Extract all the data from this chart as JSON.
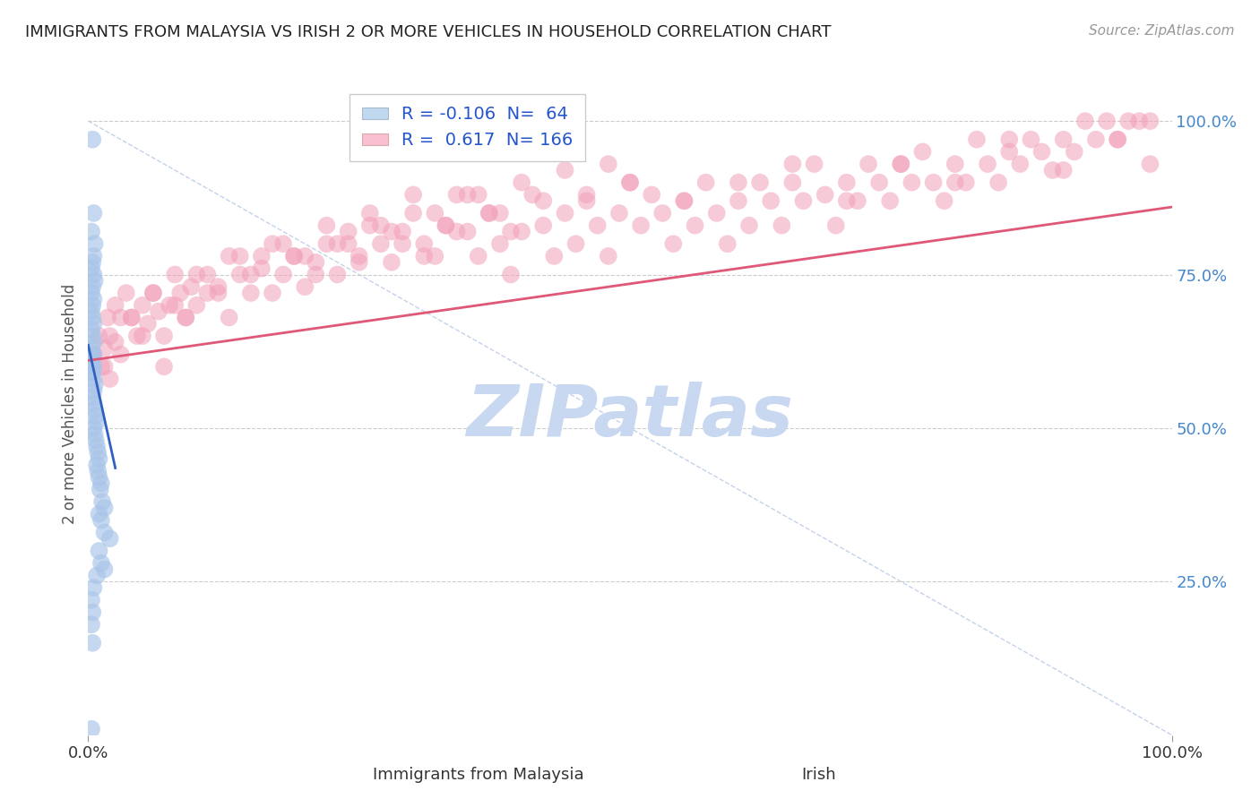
{
  "title": "IMMIGRANTS FROM MALAYSIA VS IRISH 2 OR MORE VEHICLES IN HOUSEHOLD CORRELATION CHART",
  "source": "Source: ZipAtlas.com",
  "ylabel": "2 or more Vehicles in Household",
  "right_ytick_labels": [
    "25.0%",
    "50.0%",
    "75.0%",
    "100.0%"
  ],
  "right_ytick_positions": [
    0.25,
    0.5,
    0.75,
    1.0
  ],
  "blue_R": -0.106,
  "blue_N": 64,
  "pink_R": 0.617,
  "pink_N": 166,
  "blue_color": "#a8c4e8",
  "pink_color": "#f2a0b8",
  "blue_line_color": "#3060c0",
  "pink_line_color": "#e05878",
  "legend_blue_face": "#c0d8f0",
  "legend_pink_face": "#f8c0d0",
  "watermark_color": "#c8d8f0",
  "background_color": "#ffffff",
  "grid_color": "#cccccc",
  "blue_x": [
    0.004,
    0.005,
    0.003,
    0.006,
    0.005,
    0.004,
    0.003,
    0.005,
    0.006,
    0.004,
    0.003,
    0.005,
    0.004,
    0.003,
    0.004,
    0.005,
    0.003,
    0.004,
    0.005,
    0.003,
    0.004,
    0.003,
    0.005,
    0.004,
    0.003,
    0.004,
    0.005,
    0.003,
    0.004,
    0.005,
    0.006,
    0.005,
    0.004,
    0.005,
    0.006,
    0.007,
    0.008,
    0.005,
    0.006,
    0.007,
    0.008,
    0.009,
    0.01,
    0.008,
    0.009,
    0.01,
    0.012,
    0.011,
    0.013,
    0.015,
    0.01,
    0.012,
    0.015,
    0.02,
    0.01,
    0.012,
    0.015,
    0.008,
    0.005,
    0.003,
    0.004,
    0.003,
    0.004,
    0.003
  ],
  "blue_y": [
    0.97,
    0.85,
    0.82,
    0.8,
    0.78,
    0.77,
    0.76,
    0.75,
    0.74,
    0.73,
    0.72,
    0.71,
    0.7,
    0.69,
    0.68,
    0.67,
    0.66,
    0.65,
    0.64,
    0.63,
    0.62,
    0.61,
    0.6,
    0.59,
    0.6,
    0.61,
    0.62,
    0.6,
    0.59,
    0.58,
    0.57,
    0.56,
    0.55,
    0.54,
    0.53,
    0.52,
    0.51,
    0.5,
    0.49,
    0.48,
    0.47,
    0.46,
    0.45,
    0.44,
    0.43,
    0.42,
    0.41,
    0.4,
    0.38,
    0.37,
    0.36,
    0.35,
    0.33,
    0.32,
    0.3,
    0.28,
    0.27,
    0.26,
    0.24,
    0.22,
    0.2,
    0.18,
    0.15,
    0.01
  ],
  "pink_x": [
    0.005,
    0.01,
    0.012,
    0.015,
    0.018,
    0.02,
    0.025,
    0.03,
    0.035,
    0.04,
    0.045,
    0.05,
    0.055,
    0.06,
    0.065,
    0.07,
    0.075,
    0.08,
    0.085,
    0.09,
    0.095,
    0.1,
    0.11,
    0.12,
    0.13,
    0.14,
    0.15,
    0.16,
    0.17,
    0.18,
    0.19,
    0.2,
    0.21,
    0.22,
    0.23,
    0.24,
    0.25,
    0.26,
    0.27,
    0.28,
    0.29,
    0.3,
    0.31,
    0.32,
    0.33,
    0.34,
    0.35,
    0.36,
    0.37,
    0.38,
    0.39,
    0.4,
    0.41,
    0.42,
    0.43,
    0.44,
    0.45,
    0.46,
    0.47,
    0.48,
    0.49,
    0.5,
    0.51,
    0.52,
    0.53,
    0.54,
    0.55,
    0.56,
    0.57,
    0.58,
    0.59,
    0.6,
    0.61,
    0.62,
    0.63,
    0.64,
    0.65,
    0.66,
    0.67,
    0.68,
    0.69,
    0.7,
    0.71,
    0.72,
    0.73,
    0.74,
    0.75,
    0.76,
    0.77,
    0.78,
    0.79,
    0.8,
    0.81,
    0.82,
    0.83,
    0.84,
    0.85,
    0.86,
    0.87,
    0.88,
    0.89,
    0.9,
    0.91,
    0.92,
    0.93,
    0.94,
    0.95,
    0.96,
    0.97,
    0.98,
    0.02,
    0.03,
    0.05,
    0.07,
    0.09,
    0.11,
    0.13,
    0.15,
    0.17,
    0.19,
    0.21,
    0.23,
    0.25,
    0.27,
    0.29,
    0.31,
    0.33,
    0.35,
    0.37,
    0.39,
    0.015,
    0.025,
    0.04,
    0.06,
    0.08,
    0.1,
    0.12,
    0.14,
    0.16,
    0.18,
    0.2,
    0.22,
    0.24,
    0.26,
    0.28,
    0.3,
    0.32,
    0.34,
    0.36,
    0.38,
    0.4,
    0.42,
    0.44,
    0.46,
    0.48,
    0.5,
    0.55,
    0.6,
    0.65,
    0.7,
    0.75,
    0.8,
    0.85,
    0.9,
    0.95,
    0.98
  ],
  "pink_y": [
    0.62,
    0.65,
    0.6,
    0.63,
    0.68,
    0.65,
    0.7,
    0.68,
    0.72,
    0.68,
    0.65,
    0.7,
    0.67,
    0.72,
    0.69,
    0.65,
    0.7,
    0.75,
    0.72,
    0.68,
    0.73,
    0.7,
    0.75,
    0.72,
    0.78,
    0.75,
    0.72,
    0.78,
    0.8,
    0.75,
    0.78,
    0.73,
    0.77,
    0.8,
    0.75,
    0.82,
    0.78,
    0.83,
    0.8,
    0.77,
    0.82,
    0.85,
    0.8,
    0.78,
    0.83,
    0.88,
    0.82,
    0.78,
    0.85,
    0.8,
    0.75,
    0.82,
    0.88,
    0.83,
    0.78,
    0.85,
    0.8,
    0.87,
    0.83,
    0.78,
    0.85,
    0.9,
    0.83,
    0.88,
    0.85,
    0.8,
    0.87,
    0.83,
    0.9,
    0.85,
    0.8,
    0.87,
    0.83,
    0.9,
    0.87,
    0.83,
    0.9,
    0.87,
    0.93,
    0.88,
    0.83,
    0.9,
    0.87,
    0.93,
    0.9,
    0.87,
    0.93,
    0.9,
    0.95,
    0.9,
    0.87,
    0.93,
    0.9,
    0.97,
    0.93,
    0.9,
    0.97,
    0.93,
    0.97,
    0.95,
    0.92,
    0.97,
    0.95,
    1.0,
    0.97,
    1.0,
    0.97,
    1.0,
    1.0,
    1.0,
    0.58,
    0.62,
    0.65,
    0.6,
    0.68,
    0.72,
    0.68,
    0.75,
    0.72,
    0.78,
    0.75,
    0.8,
    0.77,
    0.83,
    0.8,
    0.78,
    0.83,
    0.88,
    0.85,
    0.82,
    0.6,
    0.64,
    0.68,
    0.72,
    0.7,
    0.75,
    0.73,
    0.78,
    0.76,
    0.8,
    0.78,
    0.83,
    0.8,
    0.85,
    0.82,
    0.88,
    0.85,
    0.82,
    0.88,
    0.85,
    0.9,
    0.87,
    0.92,
    0.88,
    0.93,
    0.9,
    0.87,
    0.9,
    0.93,
    0.87,
    0.93,
    0.9,
    0.95,
    0.92,
    0.97,
    0.93
  ]
}
